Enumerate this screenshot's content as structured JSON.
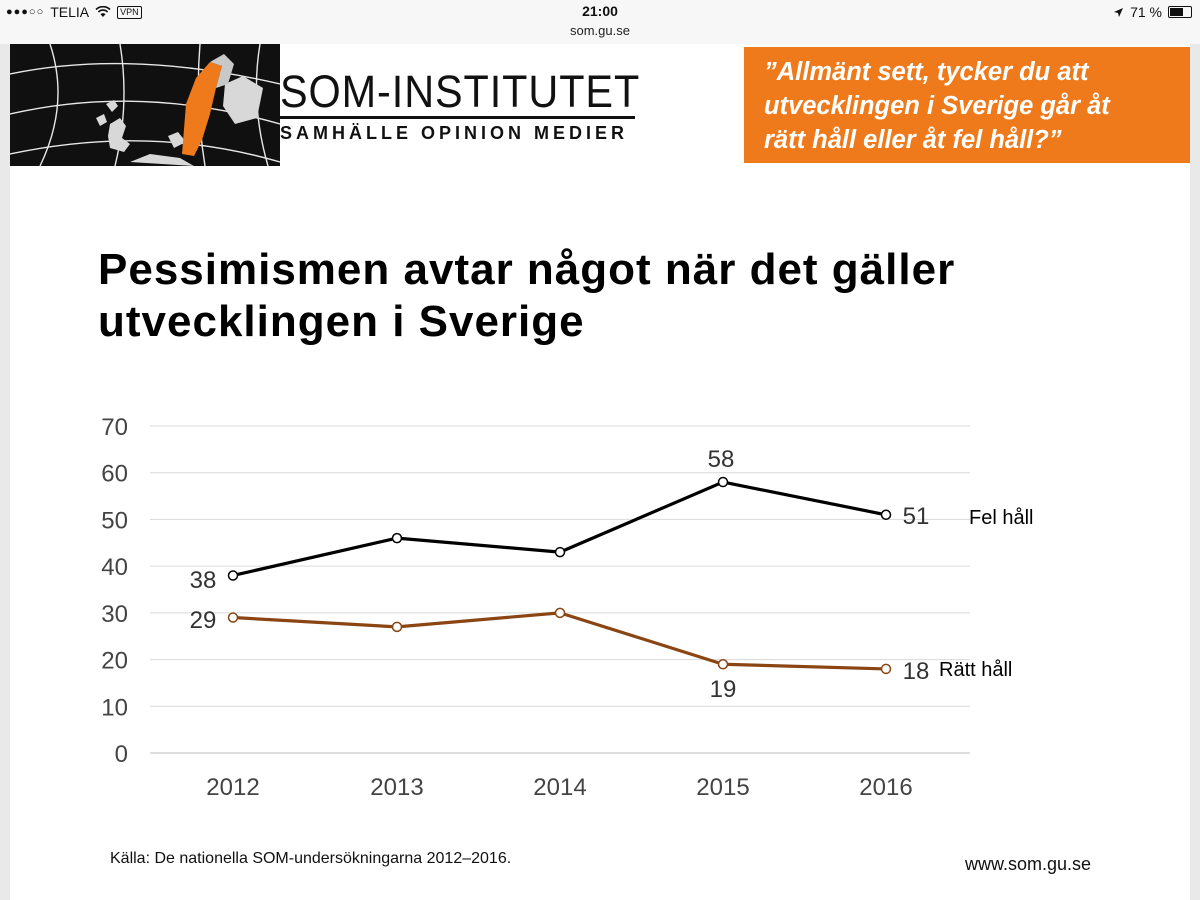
{
  "status_bar": {
    "carrier": "TELIA",
    "vpn_label": "VPN",
    "time": "21:00",
    "url": "som.gu.se",
    "battery_text": "71 %",
    "battery_level": 0.71
  },
  "header": {
    "logo_title": "SOM-INSTITUTET",
    "logo_subtitle": "SAMHÄLLE OPINION MEDIER",
    "question_lines": [
      "”Allmänt sett, tycker du att",
      "utvecklingen i Sverige går åt",
      "rätt håll eller åt fel håll?”"
    ]
  },
  "headline_lines": [
    "Pessimismen avtar något när det gäller",
    "utvecklingen i Sverige"
  ],
  "chart_data": {
    "type": "line",
    "categories": [
      "2012",
      "2013",
      "2014",
      "2015",
      "2016"
    ],
    "ylim": [
      0,
      70
    ],
    "yticks": [
      "0",
      "10",
      "20",
      "30",
      "40",
      "50",
      "60",
      "70"
    ],
    "grid": true,
    "series": [
      {
        "name": "Fel håll",
        "values": [
          38,
          46,
          43,
          58,
          51
        ],
        "color": "#000000",
        "data_labels": [
          "38",
          "",
          "",
          "58",
          "51"
        ]
      },
      {
        "name": "Rätt håll",
        "values": [
          29,
          27,
          30,
          19,
          18
        ],
        "color": "#8b4513",
        "data_labels": [
          "29",
          "",
          "",
          "19",
          "18"
        ]
      }
    ]
  },
  "footer": {
    "source": "Källa: De nationella SOM-undersökningarna 2012–2016.",
    "site": "www.som.gu.se"
  }
}
